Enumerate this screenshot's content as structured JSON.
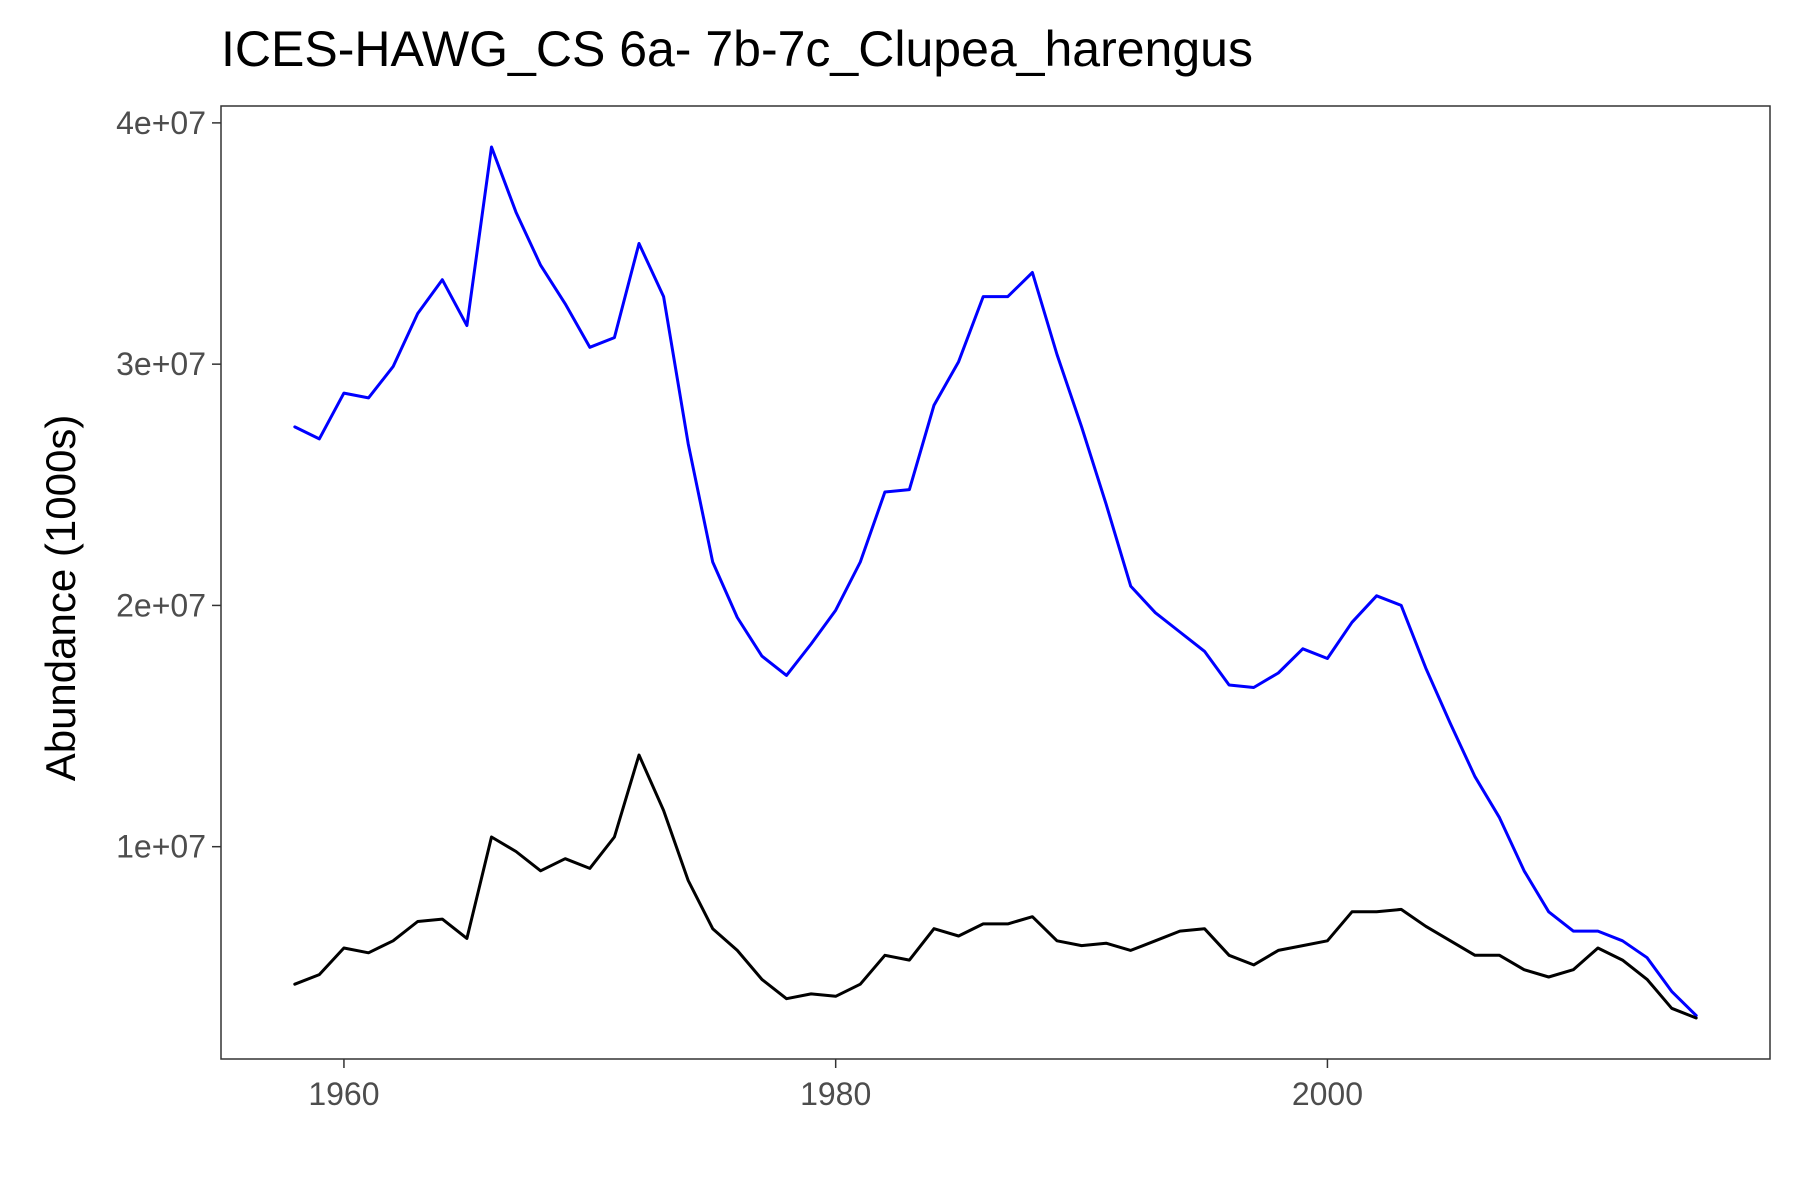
{
  "chart_data": {
    "type": "line",
    "title": "ICES-HAWG_CS 6a- 7b-7c_Clupea_harengus",
    "xlabel": "",
    "ylabel": "Abundance (1000s)",
    "xlim": [
      1955,
      2018
    ],
    "ylim": [
      1200000,
      40700000
    ],
    "x_ticks": [
      1960,
      1980,
      2000
    ],
    "x_tick_labels": [
      "1960",
      "1980",
      "2000"
    ],
    "y_ticks": [
      10000000,
      20000000,
      30000000,
      40000000
    ],
    "y_tick_labels": [
      "1e+07",
      "2e+07",
      "3e+07",
      "4e+07"
    ],
    "grid": false,
    "legend": "none",
    "x": [
      1958,
      1959,
      1960,
      1961,
      1962,
      1963,
      1964,
      1965,
      1966,
      1967,
      1968,
      1969,
      1970,
      1971,
      1972,
      1973,
      1974,
      1975,
      1976,
      1977,
      1978,
      1979,
      1980,
      1981,
      1982,
      1983,
      1984,
      1985,
      1986,
      1987,
      1988,
      1989,
      1990,
      1991,
      1992,
      1993,
      1994,
      1995,
      1996,
      1997,
      1998,
      1999,
      2000,
      2001,
      2002,
      2003,
      2004,
      2005,
      2006,
      2007,
      2008,
      2009,
      2010,
      2011,
      2012,
      2013,
      2014,
      2015
    ],
    "series": [
      {
        "color": "#0000ff",
        "values": [
          27400000,
          26900000,
          28800000,
          28600000,
          29900000,
          32100000,
          33500000,
          31600000,
          39000000,
          36300000,
          34100000,
          32500000,
          30700000,
          31100000,
          35000000,
          32800000,
          26700000,
          21800000,
          19500000,
          17900000,
          17100000,
          18400000,
          19800000,
          21800000,
          24700000,
          24800000,
          28300000,
          30100000,
          32800000,
          32800000,
          33800000,
          30400000,
          27400000,
          24200000,
          20800000,
          19700000,
          18900000,
          18100000,
          16700000,
          16600000,
          17200000,
          18200000,
          17800000,
          19300000,
          20400000,
          20000000,
          17400000,
          15100000,
          12900000,
          11200000,
          9000000,
          7300000,
          6500000,
          6500000,
          6100000,
          5400000,
          4000000,
          3000000
        ]
      },
      {
        "color": "#000000",
        "values": [
          4300000,
          4700000,
          5800000,
          5600000,
          6100000,
          6900000,
          7000000,
          6200000,
          10400000,
          9800000,
          9000000,
          9500000,
          9100000,
          10400000,
          13800000,
          11500000,
          8600000,
          6600000,
          5700000,
          4500000,
          3700000,
          3900000,
          3800000,
          4300000,
          5500000,
          5300000,
          6600000,
          6300000,
          6800000,
          6800000,
          7100000,
          6100000,
          5900000,
          6000000,
          5700000,
          6100000,
          6500000,
          6600000,
          5500000,
          5100000,
          5700000,
          5900000,
          6100000,
          7300000,
          7300000,
          7400000,
          6700000,
          6100000,
          5500000,
          5500000,
          4900000,
          4600000,
          4900000,
          5800000,
          5300000,
          4500000,
          3300000,
          2900000
        ]
      }
    ]
  }
}
